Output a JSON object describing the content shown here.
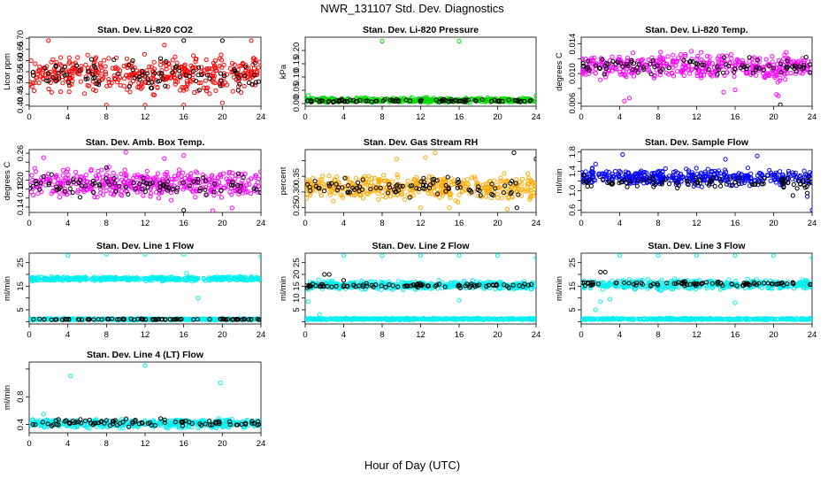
{
  "figure": {
    "title": "NWR_131107  Std. Dev. Diagnostics",
    "xlabel": "Hour of Day (UTC)"
  },
  "chart_data": [
    {
      "type": "scatter",
      "title": "Stan. Dev. Li-820 CO2",
      "xlabel": "",
      "ylabel": "Licor ppm",
      "xlim": [
        0,
        24
      ],
      "xticks": [
        0,
        4,
        8,
        12,
        16,
        20,
        24
      ],
      "ylim": [
        0.395,
        0.705
      ],
      "yticks": [
        0.4,
        0.45,
        0.5,
        0.55,
        0.6,
        0.65,
        0.7
      ],
      "ytick_labels": [
        "0.40",
        "0.45",
        "0.50",
        "0.55",
        "0.60",
        "0.65",
        "0.70"
      ],
      "series": [
        {
          "color": "#ff0000",
          "band": [
            0.43,
            0.65
          ],
          "outliers": [
            [
              8,
              0.4
            ],
            [
              12,
              0.4
            ],
            [
              16,
              0.4
            ],
            [
              20,
              0.41
            ],
            [
              14,
              0.67
            ],
            [
              23,
              0.69
            ],
            [
              2,
              0.69
            ]
          ]
        },
        {
          "color": "#000000",
          "band": [
            0.44,
            0.63
          ],
          "outliers": [
            [
              16,
              0.69
            ],
            [
              20,
              0.69
            ]
          ]
        }
      ]
    },
    {
      "type": "scatter",
      "title": "Stan. Dev. Li-820 Pressure",
      "xlabel": "",
      "ylabel": "kPa",
      "xlim": [
        0,
        24
      ],
      "xticks": [
        0,
        4,
        8,
        12,
        16,
        20,
        24
      ],
      "ylim": [
        -0.01,
        0.25
      ],
      "yticks": [
        0.0,
        0.05,
        0.1,
        0.15,
        0.2
      ],
      "ytick_labels": [
        "0.00",
        "0.05",
        "0.10",
        "0.15",
        "0.20"
      ],
      "series": [
        {
          "color": "#00dd00",
          "band": [
            0.0,
            0.025
          ],
          "outliers": [
            [
              8,
              0.235
            ],
            [
              16,
              0.235
            ],
            [
              24,
              0.03
            ],
            [
              0.3,
              0.03
            ]
          ]
        },
        {
          "color": "#000000",
          "band": [
            0.003,
            0.018
          ],
          "outliers": []
        }
      ]
    },
    {
      "type": "scatter",
      "title": "Stan. Dev. Li-820 Temp.",
      "xlabel": "",
      "ylabel": "degrees C",
      "xlim": [
        0,
        24
      ],
      "xticks": [
        0,
        4,
        8,
        12,
        16,
        20,
        24
      ],
      "ylim": [
        0.0056,
        0.0149
      ],
      "yticks": [
        0.006,
        0.008,
        0.01,
        0.012,
        0.014
      ],
      "ytick_labels": [
        "0.006",
        "",
        "0.010",
        "",
        "0.014"
      ],
      "series": [
        {
          "color": "#ff00ff",
          "band": [
            0.0085,
            0.0135
          ],
          "outliers": [
            [
              4.5,
              0.0063
            ],
            [
              5,
              0.0067
            ],
            [
              20.5,
              0.007
            ],
            [
              20.3,
              0.0072
            ],
            [
              14.8,
              0.0075
            ],
            [
              16,
              0.0078
            ]
          ]
        },
        {
          "color": "#000000",
          "band": [
            0.0095,
            0.0125
          ],
          "outliers": [
            [
              20.7,
              0.0058
            ]
          ]
        }
      ]
    },
    {
      "type": "scatter",
      "title": "Stan. Dev. Amb. Box Temp.",
      "xlabel": "",
      "ylabel": "degrees C",
      "xlim": [
        0,
        24
      ],
      "xticks": [
        0,
        4,
        8,
        12,
        16,
        20,
        24
      ],
      "ylim": [
        0.128,
        0.268
      ],
      "yticks": [
        0.14,
        0.16,
        0.18,
        0.2,
        0.22,
        0.24,
        0.26
      ],
      "ytick_labels": [
        "0.14",
        "",
        "0.18",
        "0.20",
        "",
        "",
        "0.26"
      ],
      "series": [
        {
          "color": "#ff00ff",
          "band": [
            0.15,
            0.235
          ],
          "outliers": [
            [
              10,
              0.262
            ],
            [
              16,
              0.255
            ],
            [
              1.5,
              0.25
            ],
            [
              14,
              0.248
            ],
            [
              19,
              0.132
            ],
            [
              21,
              0.138
            ]
          ]
        },
        {
          "color": "#000000",
          "band": [
            0.155,
            0.22
          ],
          "outliers": [
            [
              16,
              0.133
            ],
            [
              8,
              0.228
            ]
          ]
        }
      ]
    },
    {
      "type": "scatter",
      "title": "Stan. Dev. Gas Stream RH",
      "xlabel": "",
      "ylabel": "percent",
      "xlim": [
        0,
        24
      ],
      "xticks": [
        0,
        4,
        8,
        12,
        16,
        20,
        24
      ],
      "ylim": [
        0.235,
        0.435
      ],
      "yticks": [
        0.25,
        0.3,
        0.35,
        0.4
      ],
      "ytick_labels": [
        "0.25",
        "0.30",
        "0.35",
        ""
      ],
      "series": [
        {
          "color": "#ffaa00",
          "band": [
            0.26,
            0.37
          ],
          "outliers": [
            [
              13.5,
              0.425
            ],
            [
              12.5,
              0.41
            ],
            [
              9.5,
              0.405
            ],
            [
              21,
              0.245
            ],
            [
              15,
              0.25
            ],
            [
              12,
              0.25
            ]
          ]
        },
        {
          "color": "#000000",
          "band": [
            0.275,
            0.36
          ],
          "outliers": [
            [
              21.7,
              0.425
            ],
            [
              24,
              0.405
            ],
            [
              22,
              0.25
            ]
          ]
        }
      ]
    },
    {
      "type": "scatter",
      "title": "Stan. Dev. Sample Flow",
      "xlabel": "",
      "ylabel": "ml/min",
      "xlim": [
        0,
        24
      ],
      "xticks": [
        0,
        4,
        8,
        12,
        16,
        20,
        24
      ],
      "ylim": [
        0.55,
        1.85
      ],
      "yticks": [
        0.6,
        0.8,
        1.0,
        1.2,
        1.4,
        1.6,
        1.8
      ],
      "ytick_labels": [
        "0.6",
        "",
        "1.0",
        "",
        "1.4",
        "",
        "1.8"
      ],
      "series": [
        {
          "color": "#0000ff",
          "band": [
            1.05,
            1.5
          ],
          "outliers": [
            [
              4.3,
              1.75
            ],
            [
              15,
              1.65
            ],
            [
              18.3,
              1.72
            ],
            [
              24,
              0.6
            ],
            [
              23.5,
              0.88
            ],
            [
              1.5,
              1.55
            ]
          ]
        },
        {
          "color": "#000000",
          "band": [
            1.0,
            1.35
          ],
          "outliers": [
            [
              22,
              0.9
            ],
            [
              23.5,
              0.95
            ]
          ]
        }
      ]
    },
    {
      "type": "scatter",
      "title": "Stan. Dev. Line 1 Flow",
      "xlabel": "",
      "ylabel": "ml/min",
      "xlim": [
        0,
        24
      ],
      "xticks": [
        0,
        4,
        8,
        12,
        16,
        20,
        24
      ],
      "ylim": [
        -1,
        29
      ],
      "yticks": [
        0,
        5,
        10,
        15,
        20,
        25
      ],
      "ytick_labels": [
        "",
        "5",
        "",
        "15",
        "",
        "25"
      ],
      "series": [
        {
          "color": "#00f0f0",
          "band": [
            17,
            19.3
          ],
          "outliers": [
            [
              4,
              28
            ],
            [
              8,
              28.5
            ],
            [
              12,
              28.5
            ],
            [
              16,
              28.5
            ],
            [
              24,
              27.5
            ],
            [
              17.5,
              10
            ],
            [
              16.3,
              20.5
            ]
          ]
        },
        {
          "color": "#00f0f0",
          "band": [
            0.5,
            1.5
          ],
          "outliers": []
        },
        {
          "color": "#000000",
          "band": [
            0.7,
            1.3
          ],
          "outliers": []
        }
      ]
    },
    {
      "type": "scatter",
      "title": "Stan. Dev. Line 2 Flow",
      "xlabel": "",
      "ylabel": "ml/min",
      "xlim": [
        0,
        24
      ],
      "xticks": [
        0,
        4,
        8,
        12,
        16,
        20,
        24
      ],
      "ylim": [
        -1,
        29
      ],
      "yticks": [
        0,
        5,
        10,
        15,
        20,
        25
      ],
      "ytick_labels": [
        "",
        "5",
        "10",
        "15",
        "20",
        "25"
      ],
      "series": [
        {
          "color": "#00f0f0",
          "band": [
            13,
            18
          ],
          "outliers": [
            [
              4,
              28
            ],
            [
              8,
              28
            ],
            [
              12,
              28
            ],
            [
              16,
              28
            ],
            [
              20,
              28
            ],
            [
              24,
              27
            ],
            [
              1.5,
              3
            ],
            [
              0.3,
              8.5
            ],
            [
              16,
              9
            ]
          ]
        },
        {
          "color": "#00f0f0",
          "band": [
            0.6,
            1.6
          ],
          "outliers": []
        },
        {
          "color": "#000000",
          "band": [
            14,
            16.5
          ],
          "outliers": [
            [
              2,
              20
            ],
            [
              2.5,
              20
            ],
            [
              4,
              17.5
            ]
          ]
        }
      ]
    },
    {
      "type": "scatter",
      "title": "Stan. Dev. Line 3 Flow",
      "xlabel": "",
      "ylabel": "ml/min",
      "xlim": [
        0,
        24
      ],
      "xticks": [
        0,
        4,
        8,
        12,
        16,
        20,
        24
      ],
      "ylim": [
        -1,
        29
      ],
      "yticks": [
        0,
        5,
        10,
        15,
        20,
        25
      ],
      "ytick_labels": [
        "",
        "5",
        "",
        "15",
        "",
        "25"
      ],
      "series": [
        {
          "color": "#00f0f0",
          "band": [
            13,
            18.5
          ],
          "outliers": [
            [
              4,
              28
            ],
            [
              8,
              28
            ],
            [
              12,
              28
            ],
            [
              16,
              28
            ],
            [
              20,
              28
            ],
            [
              24,
              27
            ],
            [
              1.5,
              5
            ],
            [
              2,
              8.5
            ],
            [
              3,
              9.5
            ],
            [
              16,
              8
            ]
          ]
        },
        {
          "color": "#00f0f0",
          "band": [
            0.6,
            1.6
          ],
          "outliers": []
        },
        {
          "color": "#000000",
          "band": [
            14.5,
            17.5
          ],
          "outliers": [
            [
              2,
              21
            ],
            [
              2.5,
              21
            ]
          ]
        }
      ]
    },
    {
      "type": "scatter",
      "title": "Stan. Dev. Line 4 (LT) Flow",
      "xlabel": "",
      "ylabel": "ml/min",
      "xlim": [
        0,
        24
      ],
      "xticks": [
        0,
        4,
        8,
        12,
        16,
        20,
        24
      ],
      "ylim": [
        0.28,
        1.3
      ],
      "yticks": [
        0.4,
        0.8,
        1.2
      ],
      "ytick_labels": [
        "0.4",
        "0.8",
        ""
      ],
      "series": [
        {
          "color": "#00f0f0",
          "band": [
            0.33,
            0.5
          ],
          "outliers": [
            [
              12,
              1.25
            ],
            [
              4.3,
              1.1
            ],
            [
              19.8,
              1.0
            ],
            [
              1.5,
              0.55
            ]
          ]
        },
        {
          "color": "#000000",
          "band": [
            0.35,
            0.5
          ],
          "outliers": []
        }
      ]
    }
  ]
}
